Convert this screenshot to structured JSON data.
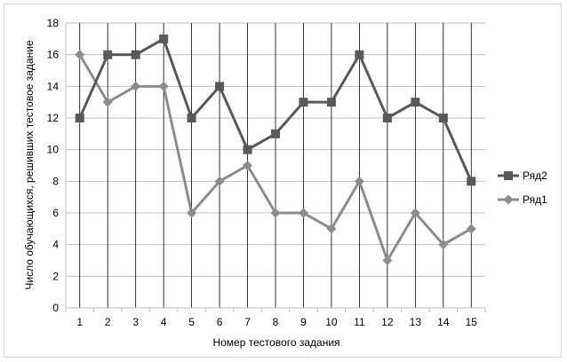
{
  "chart_data": {
    "type": "line",
    "xlabel": "Номер тестового задания",
    "ylabel": "Число обучающихся, решивших тестовое задание",
    "categories": [
      "1",
      "2",
      "3",
      "4",
      "5",
      "6",
      "7",
      "8",
      "9",
      "10",
      "11",
      "12",
      "13",
      "14",
      "15"
    ],
    "ylim": [
      0,
      18
    ],
    "yticks": [
      0,
      2,
      4,
      6,
      8,
      10,
      12,
      14,
      16,
      18
    ],
    "grid": "horizontal-and-vertical",
    "legend": "right",
    "series": [
      {
        "name": "Ряд2",
        "marker": "square",
        "color": "#595959",
        "values": [
          12,
          16,
          16,
          17,
          12,
          14,
          10,
          11,
          13,
          13,
          16,
          12,
          13,
          12,
          8
        ]
      },
      {
        "name": "Ряд1",
        "marker": "diamond",
        "color": "#8c8c8c",
        "values": [
          16,
          13,
          14,
          14,
          6,
          8,
          9,
          6,
          6,
          5,
          8,
          3,
          6,
          4,
          5
        ]
      }
    ]
  }
}
